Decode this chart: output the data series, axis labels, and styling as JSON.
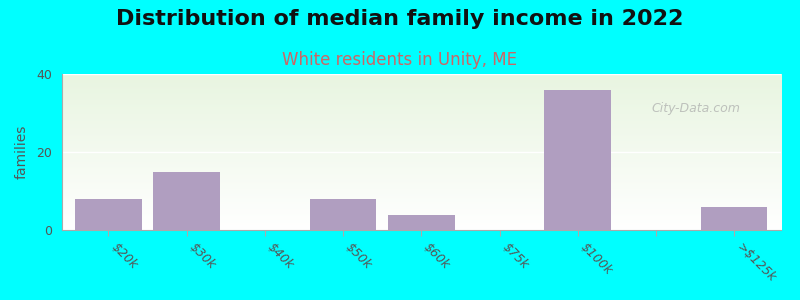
{
  "title": "Distribution of median family income in 2022",
  "subtitle": "White residents in Unity, ME",
  "categories": [
    "$20k",
    "$30k",
    "$40k",
    "$50k",
    "$60k",
    "$75k",
    "$100k",
    "",
    ">$125k"
  ],
  "x_labels": [
    "$20k",
    "$30k",
    "$40k",
    "$50k",
    "$60k",
    "$75k",
    "$100k",
    "",
    ">$125k"
  ],
  "values": [
    8,
    15,
    0,
    8,
    4,
    0,
    36,
    0,
    6
  ],
  "bar_color": "#b09ec0",
  "background_color": "#00ffff",
  "plot_bg_top": "#e8f5e0",
  "plot_bg_bottom": "#ffffff",
  "ylabel": "families",
  "ylim": [
    0,
    40
  ],
  "yticks": [
    0,
    20,
    40
  ],
  "title_fontsize": 16,
  "subtitle_fontsize": 12,
  "subtitle_color": "#cc6666",
  "watermark": "City-Data.com",
  "bar_positions": [
    0,
    1,
    2,
    3,
    4,
    5,
    6,
    7,
    8
  ],
  "bar_width": 0.85
}
